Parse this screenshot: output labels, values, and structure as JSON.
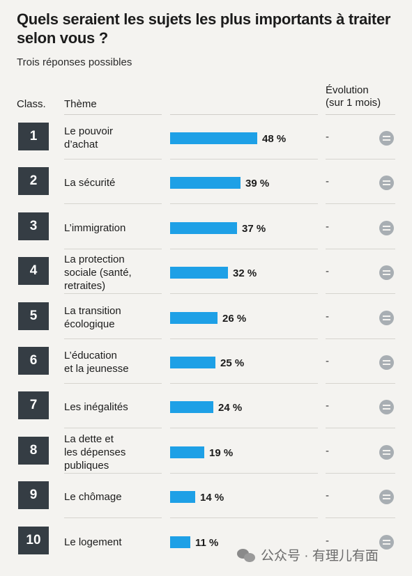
{
  "title": "Quels seraient les sujets les plus importants à traiter selon vous ?",
  "subtitle": "Trois réponses possibles",
  "headers": {
    "class": "Class.",
    "theme": "Thème",
    "evolution": "Évolution\n(sur 1 mois)"
  },
  "chart_data": {
    "type": "bar",
    "title": "Quels seraient les sujets les plus importants à traiter selon vous ?",
    "subtitle": "Trois réponses possibles",
    "categories": [
      "Le pouvoir d’achat",
      "La sécurité",
      "L’immigration",
      "La protection sociale (santé, retraites)",
      "La transition écologique",
      "L’éducation et la jeunesse",
      "Les inégalités",
      "La dette et les dépenses publiques",
      "Le chômage",
      "Le logement"
    ],
    "rows": [
      {
        "rank": "1",
        "label": "Le pouvoir\nd’achat",
        "value": 48,
        "value_label": "48 %",
        "evolution": "-"
      },
      {
        "rank": "2",
        "label": "La sécurité",
        "value": 39,
        "value_label": "39 %",
        "evolution": "-"
      },
      {
        "rank": "3",
        "label": "L’immigration",
        "value": 37,
        "value_label": "37 %",
        "evolution": "-"
      },
      {
        "rank": "4",
        "label": "La protection\nsociale (santé,\nretraites)",
        "value": 32,
        "value_label": "32 %",
        "evolution": "-"
      },
      {
        "rank": "5",
        "label": "La transition\nécologique",
        "value": 26,
        "value_label": "26 %",
        "evolution": "-"
      },
      {
        "rank": "6",
        "label": "L’éducation\net la jeunesse",
        "value": 25,
        "value_label": "25 %",
        "evolution": "-"
      },
      {
        "rank": "7",
        "label": "Les inégalités",
        "value": 24,
        "value_label": "24 %",
        "evolution": "-"
      },
      {
        "rank": "8",
        "label": "La dette et\nles dépenses\npubliques",
        "value": 19,
        "value_label": "19 %",
        "evolution": "-"
      },
      {
        "rank": "9",
        "label": "Le chômage",
        "value": 14,
        "value_label": "14 %",
        "evolution": "-"
      },
      {
        "rank": "10",
        "label": "Le logement",
        "value": 11,
        "value_label": "11 %",
        "evolution": "-"
      }
    ],
    "unit": "%",
    "evolution_icon": "equal-circle-icon",
    "colors": {
      "bar": "#1ea0e6",
      "rank_box": "#353d44",
      "evolution_icon": "#a8aeb3"
    }
  },
  "watermark": {
    "text": "公众号 · 有理儿有面",
    "icon": "wechat-icon"
  }
}
